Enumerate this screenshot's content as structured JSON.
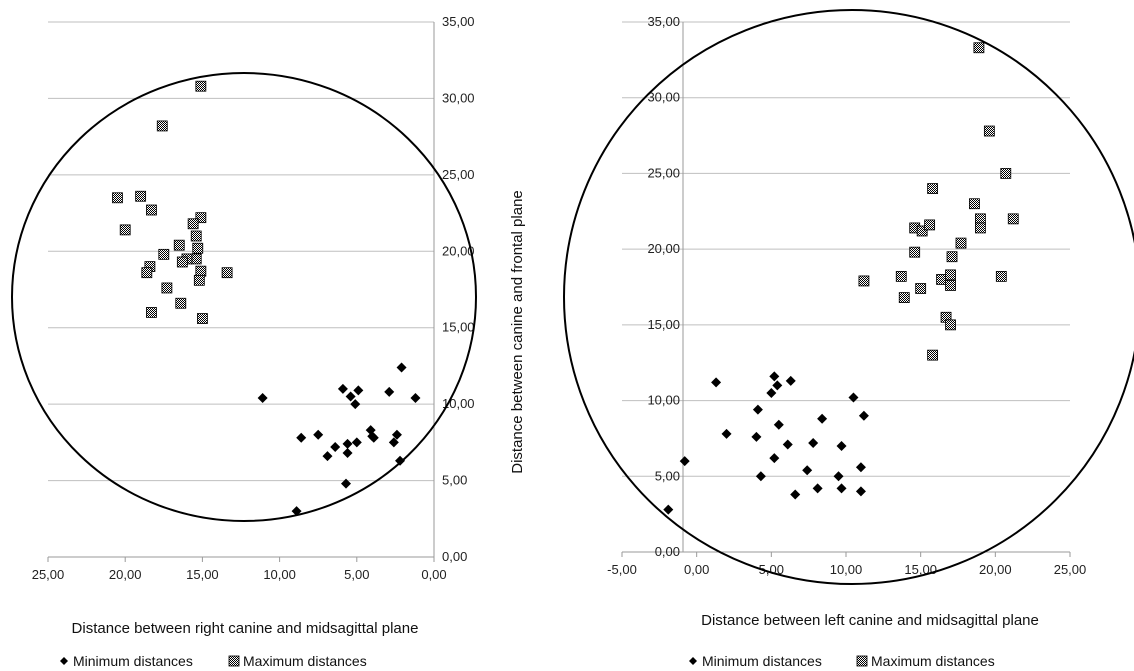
{
  "chart_data": [
    {
      "type": "scatter",
      "title": "",
      "xlabel": "Distance between right canine and midsagittal plane",
      "ylabel": "Distance between canine  and frontal plane",
      "x_reversed": true,
      "xlim": [
        0,
        25
      ],
      "ylim": [
        0,
        35
      ],
      "x_ticks": [
        "25,00",
        "20,00",
        "15,00",
        "10,00",
        "5,00",
        "0,00"
      ],
      "y_ticks": [
        "0,00",
        "5,00",
        "10,00",
        "15,00",
        "20,00",
        "25,00",
        "30,00",
        "35,00"
      ],
      "y_axis_side": "right",
      "grid": "horizontal",
      "legend_position": "bottom",
      "series": [
        {
          "name": "Minimum distances",
          "marker": "diamond",
          "points": [
            [
              11.1,
              10.4
            ],
            [
              8.6,
              7.8
            ],
            [
              7.5,
              8.0
            ],
            [
              6.9,
              6.6
            ],
            [
              6.4,
              7.2
            ],
            [
              5.9,
              11.0
            ],
            [
              5.6,
              7.4
            ],
            [
              5.6,
              6.8
            ],
            [
              5.4,
              10.5
            ],
            [
              4.9,
              10.9
            ],
            [
              5.0,
              7.5
            ],
            [
              5.1,
              10.0
            ],
            [
              4.1,
              8.3
            ],
            [
              4.0,
              7.9
            ],
            [
              3.9,
              7.8
            ],
            [
              2.9,
              10.8
            ],
            [
              2.6,
              7.5
            ],
            [
              2.4,
              8.0
            ],
            [
              2.1,
              12.4
            ],
            [
              2.2,
              6.3
            ],
            [
              1.2,
              10.4
            ],
            [
              8.9,
              3.0
            ],
            [
              5.7,
              4.8
            ]
          ]
        },
        {
          "name": "Maximum distances",
          "marker": "checkered-square",
          "points": [
            [
              15.1,
              30.8
            ],
            [
              17.6,
              28.2
            ],
            [
              20.5,
              23.5
            ],
            [
              19.0,
              23.6
            ],
            [
              18.3,
              22.7
            ],
            [
              15.1,
              22.2
            ],
            [
              15.6,
              21.8
            ],
            [
              20.0,
              21.4
            ],
            [
              15.4,
              21.0
            ],
            [
              16.5,
              20.4
            ],
            [
              15.3,
              20.2
            ],
            [
              17.5,
              19.8
            ],
            [
              15.4,
              19.5
            ],
            [
              16.0,
              19.5
            ],
            [
              16.3,
              19.3
            ],
            [
              18.4,
              19.0
            ],
            [
              18.6,
              18.6
            ],
            [
              15.1,
              18.7
            ],
            [
              15.2,
              18.1
            ],
            [
              13.4,
              18.6
            ],
            [
              17.3,
              17.6
            ],
            [
              16.4,
              16.6
            ],
            [
              18.3,
              16.0
            ],
            [
              15.0,
              15.6
            ]
          ]
        }
      ]
    },
    {
      "type": "scatter",
      "title": "",
      "xlabel": "Distance between left canine and midsagittal plane",
      "ylabel": "",
      "xlim": [
        -5,
        25
      ],
      "ylim": [
        0,
        35
      ],
      "x_ticks": [
        "-5,00",
        "0,00",
        "5,00",
        "10,00",
        "15,00",
        "20,00",
        "25,00"
      ],
      "y_ticks": [
        "0,00",
        "5,00",
        "10,00",
        "15,00",
        "20,00",
        "25,00",
        "30,00",
        "35,00"
      ],
      "y_axis_side": "left",
      "grid": "horizontal",
      "legend_position": "bottom",
      "series": [
        {
          "name": "Minimum distances",
          "marker": "diamond",
          "points": [
            [
              -1.9,
              2.8
            ],
            [
              -0.8,
              6.0
            ],
            [
              1.3,
              11.2
            ],
            [
              2.0,
              7.8
            ],
            [
              4.1,
              9.4
            ],
            [
              4.0,
              7.6
            ],
            [
              4.3,
              5.0
            ],
            [
              5.0,
              10.5
            ],
            [
              5.2,
              11.6
            ],
            [
              5.4,
              11.0
            ],
            [
              5.5,
              8.4
            ],
            [
              6.1,
              7.1
            ],
            [
              6.3,
              11.3
            ],
            [
              5.2,
              6.2
            ],
            [
              6.6,
              3.8
            ],
            [
              7.4,
              5.4
            ],
            [
              7.8,
              7.2
            ],
            [
              8.1,
              4.2
            ],
            [
              8.4,
              8.8
            ],
            [
              9.5,
              5.0
            ],
            [
              9.7,
              7.0
            ],
            [
              9.7,
              4.2
            ],
            [
              10.5,
              10.2
            ],
            [
              11.0,
              5.6
            ],
            [
              11.2,
              9.0
            ],
            [
              11.0,
              4.0
            ]
          ]
        },
        {
          "name": "Maximum distances",
          "marker": "checkered-square",
          "points": [
            [
              18.9,
              33.3
            ],
            [
              19.6,
              27.8
            ],
            [
              15.8,
              24.0
            ],
            [
              20.7,
              25.0
            ],
            [
              18.6,
              23.0
            ],
            [
              14.6,
              21.4
            ],
            [
              15.1,
              21.2
            ],
            [
              15.6,
              21.6
            ],
            [
              19.0,
              22.0
            ],
            [
              21.2,
              22.0
            ],
            [
              19.0,
              21.4
            ],
            [
              17.7,
              20.4
            ],
            [
              14.6,
              19.8
            ],
            [
              17.1,
              19.5
            ],
            [
              11.2,
              17.9
            ],
            [
              13.7,
              18.2
            ],
            [
              15.0,
              17.4
            ],
            [
              16.4,
              18.0
            ],
            [
              17.0,
              18.3
            ],
            [
              17.0,
              17.6
            ],
            [
              20.4,
              18.2
            ],
            [
              13.9,
              16.8
            ],
            [
              16.7,
              15.5
            ],
            [
              17.0,
              15.0
            ],
            [
              15.8,
              13.0
            ]
          ]
        }
      ]
    }
  ]
}
